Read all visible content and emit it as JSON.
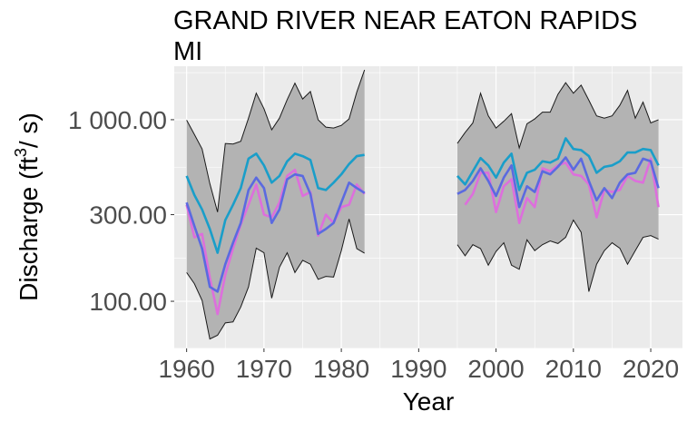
{
  "chart_data": {
    "type": "line",
    "title_lines": [
      "GRAND RIVER NEAR EATON RAPIDS",
      "MI"
    ],
    "xlabel": "Year",
    "ylabel": "Discharge (ft",
    "ylabel_sup": "3",
    "ylabel_tail": "/ s)",
    "x_ticks": [
      1960,
      1970,
      1980,
      1990,
      2000,
      2010,
      2020
    ],
    "x_tick_labels": [
      "1960",
      "1970",
      "1980",
      "1990",
      "2000",
      "2010",
      "2020"
    ],
    "y_ticks": [
      100,
      300,
      1000
    ],
    "y_tick_labels": [
      "100.00",
      "300.00",
      "1 000.00"
    ],
    "y_scale": "log10",
    "xlim": [
      1958.4,
      2024.1
    ],
    "ylim": [
      55,
      1970
    ],
    "grid": true,
    "colors": {
      "panel": "#ebebeb",
      "grid": "#ffffff",
      "ribbon": "#b3b3b3",
      "ribbon_edge": "#1a1a1a",
      "cyan": "#1a9ec9",
      "blue": "#5b6ae0",
      "magenta": "#dd6fdc"
    },
    "segments": [
      {
        "years": [
          1960,
          1961,
          1962,
          1963,
          1964,
          1965,
          1966,
          1967,
          1968,
          1969,
          1970,
          1971,
          1972,
          1973,
          1974,
          1975,
          1976,
          1977,
          1978,
          1979,
          1980,
          1981,
          1982,
          1983
        ],
        "band_max": [
          995,
          830,
          690,
          445,
          310,
          740,
          735,
          760,
          1020,
          1400,
          1150,
          880,
          1020,
          1290,
          1590,
          1300,
          1430,
          1000,
          910,
          900,
          930,
          1010,
          1420,
          1880
        ],
        "band_min": [
          144,
          125,
          101,
          62,
          65,
          76,
          77,
          93,
          120,
          196,
          185,
          104,
          154,
          185,
          144,
          168,
          160,
          132,
          137,
          136,
          190,
          284,
          195,
          184
        ],
        "cyan": [
          490,
          385,
          320,
          250,
          185,
          280,
          340,
          420,
          610,
          650,
          560,
          450,
          490,
          590,
          650,
          630,
          600,
          420,
          410,
          450,
          500,
          570,
          630,
          640
        ],
        "blue": [
          350,
          260,
          195,
          120,
          113,
          160,
          210,
          270,
          410,
          480,
          420,
          270,
          320,
          470,
          500,
          490,
          390,
          235,
          250,
          270,
          350,
          450,
          420,
          395
        ],
        "magenta": [
          340,
          225,
          235,
          135,
          85,
          140,
          195,
          265,
          340,
          440,
          300,
          290,
          350,
          490,
          530,
          380,
          400,
          230,
          300,
          270,
          330,
          340,
          440,
          390
        ]
      },
      {
        "years": [
          1995,
          1996,
          1997,
          1998,
          1999,
          2000,
          2001,
          2002,
          2003,
          2004,
          2005,
          2006,
          2007,
          2008,
          2009,
          2010,
          2011,
          2012,
          2013,
          2014,
          2015,
          2016,
          2017,
          2018,
          2019,
          2020,
          2021
        ],
        "band_max": [
          740,
          850,
          960,
          1400,
          1050,
          900,
          980,
          1080,
          700,
          950,
          1010,
          1100,
          1100,
          1380,
          1600,
          1400,
          1550,
          1280,
          1050,
          1020,
          1050,
          1200,
          1450,
          1020,
          1250,
          960,
          1000
        ],
        "band_min": [
          205,
          178,
          205,
          195,
          158,
          188,
          210,
          158,
          150,
          218,
          190,
          205,
          215,
          208,
          225,
          280,
          240,
          113,
          160,
          190,
          210,
          196,
          160,
          190,
          225,
          230,
          220
        ],
        "cyan": [
          490,
          440,
          520,
          615,
          560,
          480,
          580,
          650,
          410,
          510,
          530,
          590,
          580,
          610,
          790,
          690,
          680,
          630,
          510,
          550,
          560,
          590,
          660,
          660,
          690,
          680,
          560
        ],
        "blue": [
          390,
          410,
          460,
          540,
          460,
          380,
          480,
          560,
          330,
          430,
          400,
          520,
          500,
          550,
          620,
          530,
          610,
          460,
          360,
          420,
          370,
          450,
          500,
          510,
          610,
          590,
          420
        ],
        "magenta": [
          null,
          340,
          390,
          510,
          510,
          310,
          430,
          470,
          270,
          370,
          330,
          540,
          520,
          560,
          580,
          500,
          490,
          440,
          290,
          410,
          400,
          410,
          490,
          460,
          450,
          610,
          330
        ]
      }
    ]
  }
}
